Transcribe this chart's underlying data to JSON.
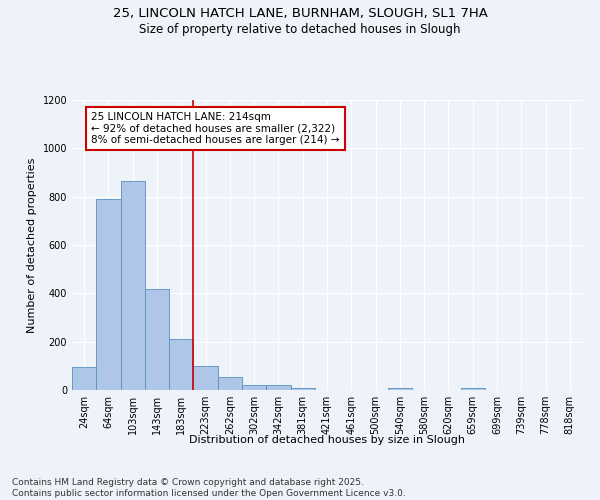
{
  "title_line1": "25, LINCOLN HATCH LANE, BURNHAM, SLOUGH, SL1 7HA",
  "title_line2": "Size of property relative to detached houses in Slough",
  "xlabel": "Distribution of detached houses by size in Slough",
  "ylabel": "Number of detached properties",
  "categories": [
    "24sqm",
    "64sqm",
    "103sqm",
    "143sqm",
    "183sqm",
    "223sqm",
    "262sqm",
    "302sqm",
    "342sqm",
    "381sqm",
    "421sqm",
    "461sqm",
    "500sqm",
    "540sqm",
    "580sqm",
    "620sqm",
    "659sqm",
    "699sqm",
    "739sqm",
    "778sqm",
    "818sqm"
  ],
  "values": [
    95,
    790,
    865,
    420,
    210,
    100,
    55,
    20,
    20,
    10,
    0,
    0,
    0,
    10,
    0,
    0,
    10,
    0,
    0,
    0,
    0
  ],
  "bar_color": "#aec6e8",
  "bar_edge_color": "#5a8fc0",
  "vline_color": "#cc0000",
  "vline_index": 4.5,
  "annotation_text": "25 LINCOLN HATCH LANE: 214sqm\n← 92% of detached houses are smaller (2,322)\n8% of semi-detached houses are larger (214) →",
  "annotation_box_edgecolor": "#cc0000",
  "ylim": [
    0,
    1200
  ],
  "yticks": [
    0,
    200,
    400,
    600,
    800,
    1000,
    1200
  ],
  "background_color": "#eef2f9",
  "footer_line1": "Contains HM Land Registry data © Crown copyright and database right 2025.",
  "footer_line2": "Contains public sector information licensed under the Open Government Licence v3.0.",
  "title_fontsize": 9.5,
  "subtitle_fontsize": 8.5,
  "axis_label_fontsize": 8,
  "tick_fontsize": 7,
  "annotation_fontsize": 7.5,
  "footer_fontsize": 6.5
}
